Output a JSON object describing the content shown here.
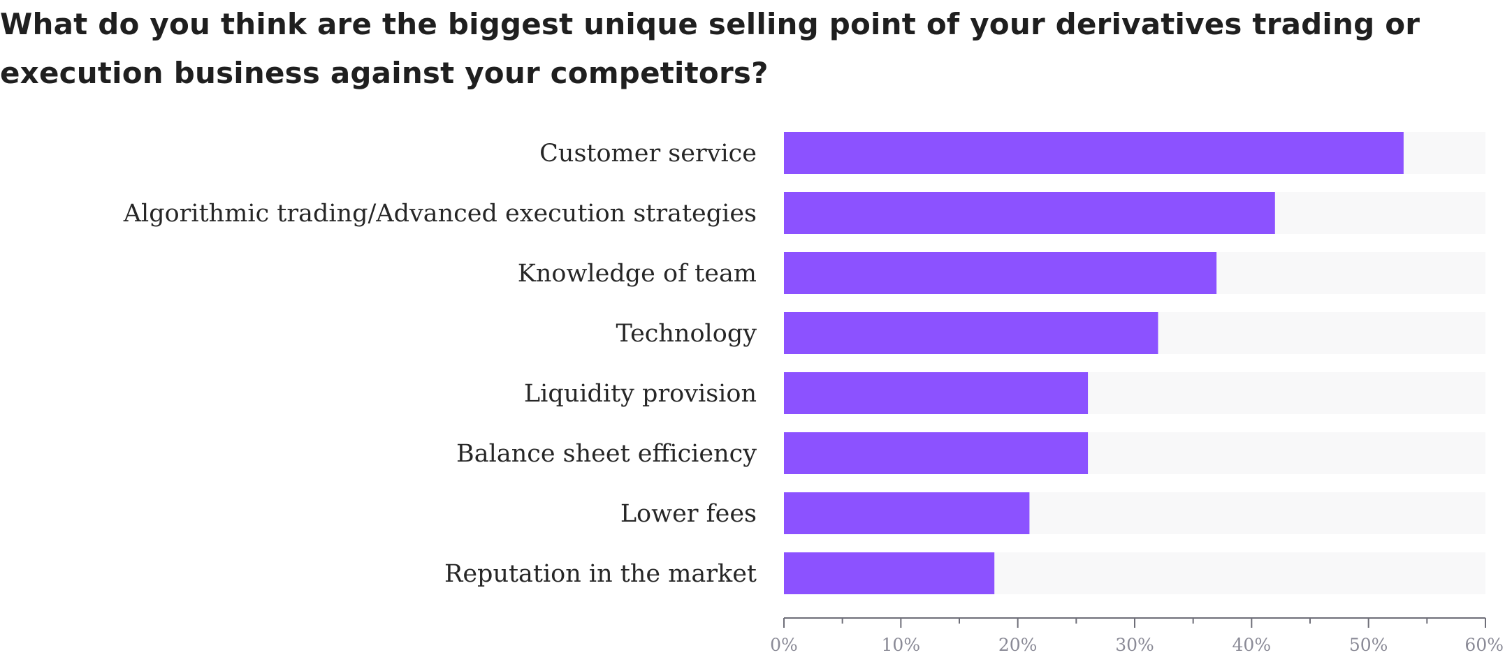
{
  "chart_data": {
    "type": "bar",
    "orientation": "horizontal",
    "title": "What do you think are the biggest unique selling point of your derivatives trading or execution business against your competitors?",
    "categories": [
      "Customer service",
      "Algorithmic trading/Advanced execution strategies",
      "Knowledge of team",
      "Technology",
      "Liquidity provision",
      "Balance sheet efficiency",
      "Lower fees",
      "Reputation in the market"
    ],
    "values": [
      53,
      42,
      37,
      32,
      26,
      26,
      21,
      18
    ],
    "xlim": [
      0,
      60
    ],
    "x_ticks": [
      0,
      10,
      20,
      30,
      40,
      50,
      60
    ],
    "x_tick_labels": [
      "0%",
      "10%",
      "20%",
      "30%",
      "40%",
      "50%",
      "60%"
    ],
    "xlabel": "",
    "ylabel": "",
    "grid": false,
    "legend": "none",
    "colors": {
      "bar": "#8c52ff",
      "track": "#f8f8f9",
      "axis": "#6e6e78"
    }
  }
}
